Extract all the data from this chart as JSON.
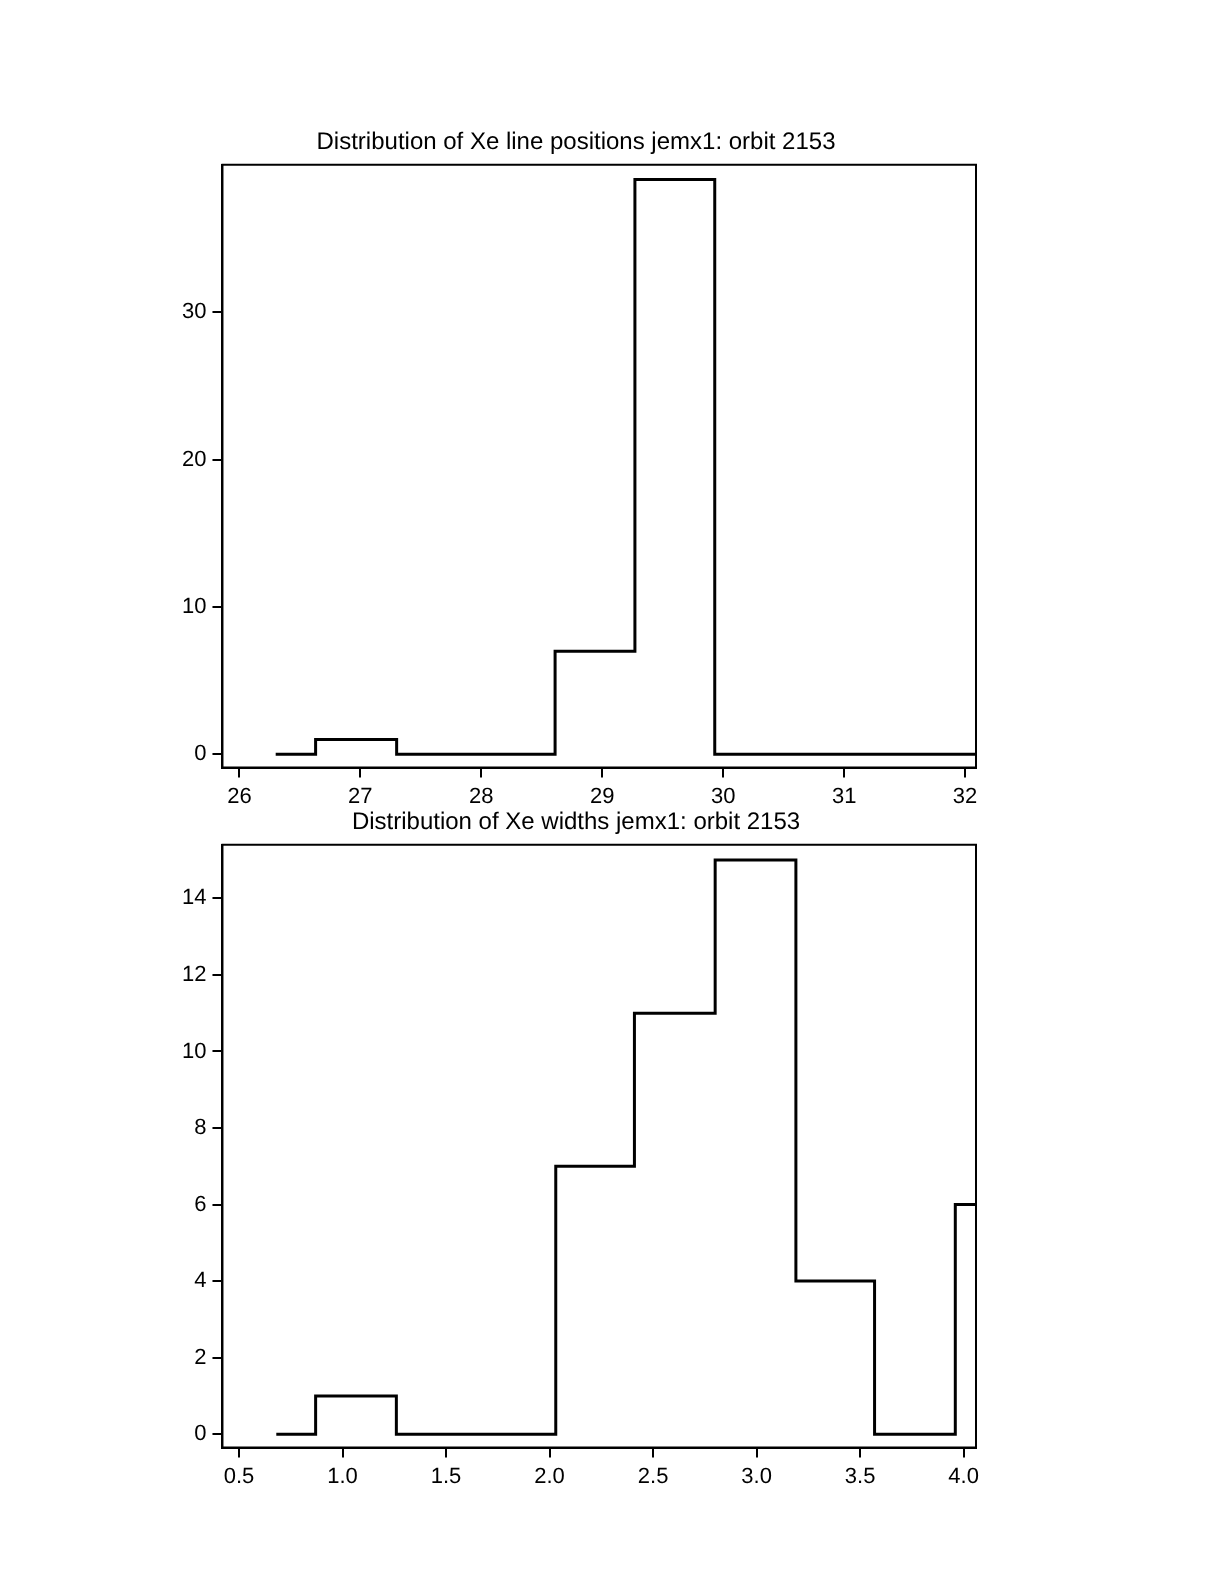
{
  "chart_data": [
    {
      "type": "histogram",
      "title": "Distribution of Xe line positions jemx1: orbit 2153",
      "color": "#000000",
      "bins": [
        26.3,
        26.63,
        27.3,
        27.96,
        28.61,
        29.27,
        29.93,
        30.59,
        31.25,
        31.91,
        32.09
      ],
      "values": [
        0,
        1,
        0,
        0,
        7,
        39,
        0,
        0,
        0,
        0
      ],
      "xlim": [
        25.86,
        32.09
      ],
      "ylim": [
        -0.9,
        40
      ],
      "xticks": [
        26,
        27,
        28,
        29,
        30,
        31,
        32
      ],
      "yticks": [
        0,
        10,
        20,
        30
      ]
    },
    {
      "type": "histogram",
      "title": "Distribution of Xe widths jemx1: orbit 2153",
      "color": "#000000",
      "bins": [
        0.68,
        0.87,
        1.26,
        1.65,
        2.03,
        2.41,
        2.8,
        3.19,
        3.57,
        3.96,
        4.06
      ],
      "values": [
        0,
        1,
        0,
        0,
        7,
        11,
        15,
        4,
        0,
        6
      ],
      "xlim": [
        0.42,
        4.06
      ],
      "ylim": [
        -0.35,
        15.4
      ],
      "xticks": [
        0.5,
        {
          "value": 1,
          "label": "1.0"
        },
        1.5,
        {
          "value": 2,
          "label": "2.0"
        },
        2.5,
        {
          "value": 3,
          "label": "3.0"
        },
        3.5,
        {
          "value": 4,
          "label": "4.0"
        }
      ],
      "yticks": [
        0,
        2,
        4,
        6,
        8,
        10,
        12,
        14
      ]
    }
  ]
}
